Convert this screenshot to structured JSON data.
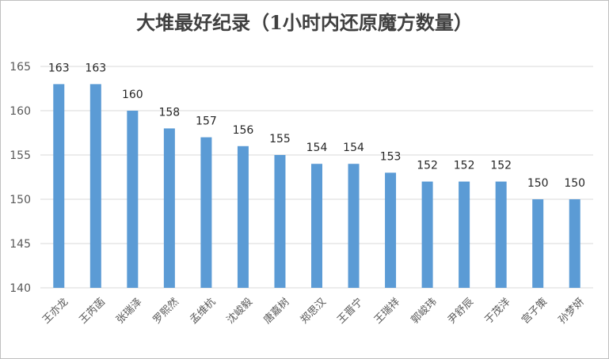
{
  "chart_data": {
    "type": "bar",
    "title": "大堆最好纪录（1小时内还原魔方数量）",
    "xlabel": "",
    "ylabel": "",
    "categories": [
      "王亦龙",
      "王芮菡",
      "张瑞泽",
      "罗熙然",
      "孟维杭",
      "沈峻毅",
      "唐嘉树",
      "郑思汉",
      "王晋宁",
      "王瑞祥",
      "郭峻玮",
      "尹舒辰",
      "于茂洋",
      "宫子策",
      "孙梦妍"
    ],
    "values": [
      163,
      163,
      160,
      158,
      157,
      156,
      155,
      154,
      154,
      153,
      152,
      152,
      152,
      150,
      150
    ],
    "ylim": [
      140,
      165
    ],
    "yticks": [
      140,
      145,
      150,
      155,
      160,
      165
    ],
    "grid": true,
    "legend": "none",
    "bar_color": "#5b9bd5",
    "grid_color": "#d9d9d9"
  }
}
